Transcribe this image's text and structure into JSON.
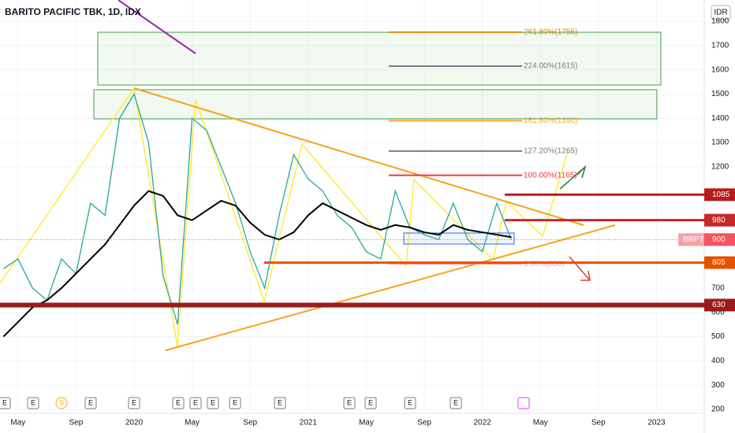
{
  "chart_data": {
    "type": "line",
    "title": "BARITO PACIFIC TBK, 1D, IDX",
    "currency": "IDR",
    "x": [
      "2019-04",
      "2019-05",
      "2019-06",
      "2019-07",
      "2019-08",
      "2019-09",
      "2019-10",
      "2019-11",
      "2019-12",
      "2020-01",
      "2020-02",
      "2020-03",
      "2020-04",
      "2020-05",
      "2020-06",
      "2020-07",
      "2020-08",
      "2020-09",
      "2020-10",
      "2020-11",
      "2020-12",
      "2021-01",
      "2021-02",
      "2021-03",
      "2021-04",
      "2021-05",
      "2021-06",
      "2021-07",
      "2021-08",
      "2021-09",
      "2021-10",
      "2021-11",
      "2021-12",
      "2022-01",
      "2022-02",
      "2022-03"
    ],
    "series": [
      {
        "color": "#26a69a",
        "values": [
          780,
          820,
          700,
          650,
          820,
          760,
          1050,
          1000,
          1400,
          1500,
          1300,
          750,
          550,
          1400,
          1350,
          1200,
          1050,
          850,
          700,
          1000,
          1250,
          1150,
          1100,
          1000,
          950,
          850,
          820,
          1100,
          950,
          920,
          900,
          1050,
          900,
          850,
          1050,
          900
        ]
      },
      {
        "color": "#000000",
        "values": [
          500,
          560,
          620,
          650,
          700,
          760,
          820,
          880,
          960,
          1040,
          1100,
          1080,
          1000,
          980,
          1020,
          1060,
          1040,
          970,
          920,
          900,
          930,
          1000,
          1050,
          1020,
          990,
          960,
          940,
          960,
          950,
          930,
          920,
          960,
          940,
          930,
          920,
          910
        ]
      }
    ],
    "x_labels": [
      {
        "value": "2019-05",
        "label": "May"
      },
      {
        "value": "2019-09",
        "label": "Sep"
      },
      {
        "value": "2020-01",
        "label": "2020"
      },
      {
        "value": "2020-05",
        "label": "May"
      },
      {
        "value": "2020-09",
        "label": "Sep"
      },
      {
        "value": "2021-01",
        "label": "2021"
      },
      {
        "value": "2021-05",
        "label": "May"
      },
      {
        "value": "2021-09",
        "label": "Sep"
      },
      {
        "value": "2022-01",
        "label": "2022"
      },
      {
        "value": "2022-05",
        "label": "May"
      },
      {
        "value": "2022-09",
        "label": "Sep"
      },
      {
        "value": "2023-01",
        "label": "2023"
      }
    ],
    "ylim": [
      200,
      1800
    ],
    "yticks": [
      1800,
      1700,
      1600,
      1500,
      1400,
      1300,
      1200,
      700,
      600,
      500,
      400,
      300,
      200
    ],
    "grid": true,
    "fib_levels": [
      {
        "value": 1755,
        "label": "261.80%(1755)",
        "color": "#e08a00"
      },
      {
        "value": 1615,
        "label": "224.00%(1615)",
        "color": "#787b86"
      },
      {
        "value": 1390,
        "label": "161.80%(1390)",
        "color": "#f9a825"
      },
      {
        "value": 1265,
        "label": "127.20%(1265)",
        "color": "#787b86"
      },
      {
        "value": 1165,
        "label": "100.00%(1165)",
        "color": "#f23645"
      },
      {
        "value": 800,
        "label": "0.00%(800)",
        "color": "#f7a1a8"
      }
    ],
    "price_levels": [
      {
        "value": 1085,
        "color": "#b71c1c"
      },
      {
        "value": 980,
        "color": "#c62828"
      },
      {
        "value": 805,
        "color": "#e65100"
      },
      {
        "value": 630,
        "color": "#9b1b1b"
      }
    ],
    "last_price": {
      "symbol": "BRPT",
      "value": 900,
      "color": "#f7525f"
    },
    "events": [
      "E",
      "E",
      "S",
      "E",
      "E",
      "E",
      "E",
      "E",
      "E",
      "E",
      "E",
      "E",
      "E",
      "E"
    ]
  }
}
